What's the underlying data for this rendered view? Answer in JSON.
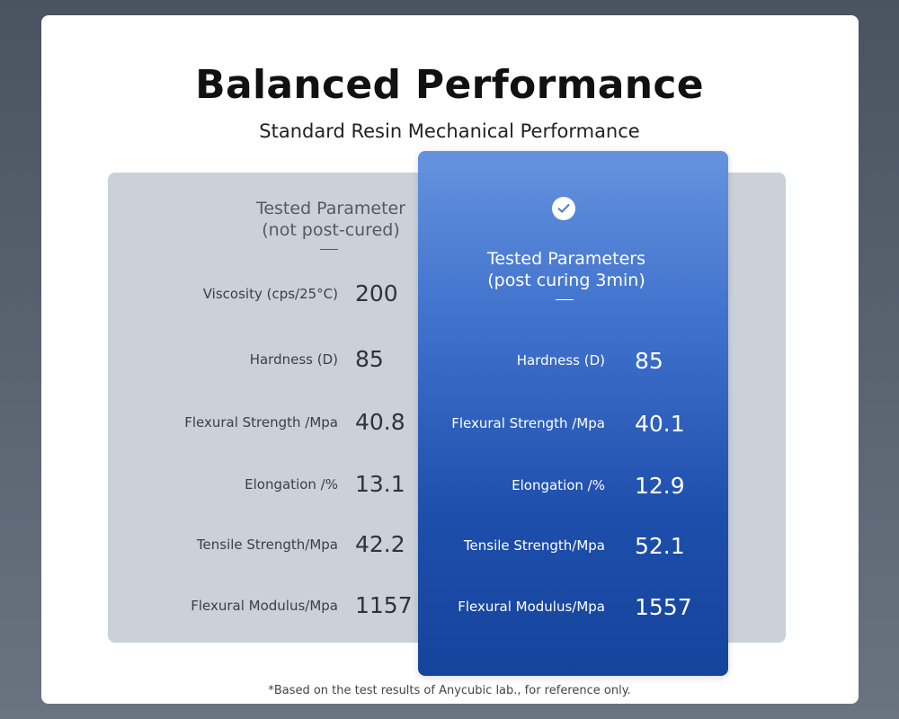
{
  "title": "Balanced Performance",
  "subtitle": "Standard Resin Mechanical Performance",
  "left_column": {
    "header_line1": "Tested Parameter",
    "header_line2": "(not post-cured)",
    "rows": [
      {
        "label": "Viscosity (cps/25°C)",
        "value": "200"
      },
      {
        "label": "Hardness (D)",
        "value": "85"
      },
      {
        "label": "Flexural Strength /Mpa",
        "value": "40.8"
      },
      {
        "label": "Elongation /%",
        "value": "13.1"
      },
      {
        "label": "Tensile Strength/Mpa",
        "value": "42.2"
      },
      {
        "label": "Flexural Modulus/Mpa",
        "value": "1157"
      }
    ]
  },
  "right_column": {
    "icon": "check-circle-icon",
    "header_line1": "Tested Parameters",
    "header_line2": "(post curing 3min)",
    "rows": [
      {
        "label": "Hardness (D)",
        "value": "85"
      },
      {
        "label": "Flexural Strength /Mpa",
        "value": "40.1"
      },
      {
        "label": "Elongation /%",
        "value": "12.9"
      },
      {
        "label": "Tensile Strength/Mpa",
        "value": "52.1"
      },
      {
        "label": "Flexural Modulus/Mpa",
        "value": "1557"
      }
    ]
  },
  "footnote": "*Based on the test results of Anycubic lab., for reference only.",
  "colors": {
    "gray_panel": "#cbd1d9",
    "blue_panel_top": "#6593de",
    "blue_panel_bottom": "#15449c"
  }
}
